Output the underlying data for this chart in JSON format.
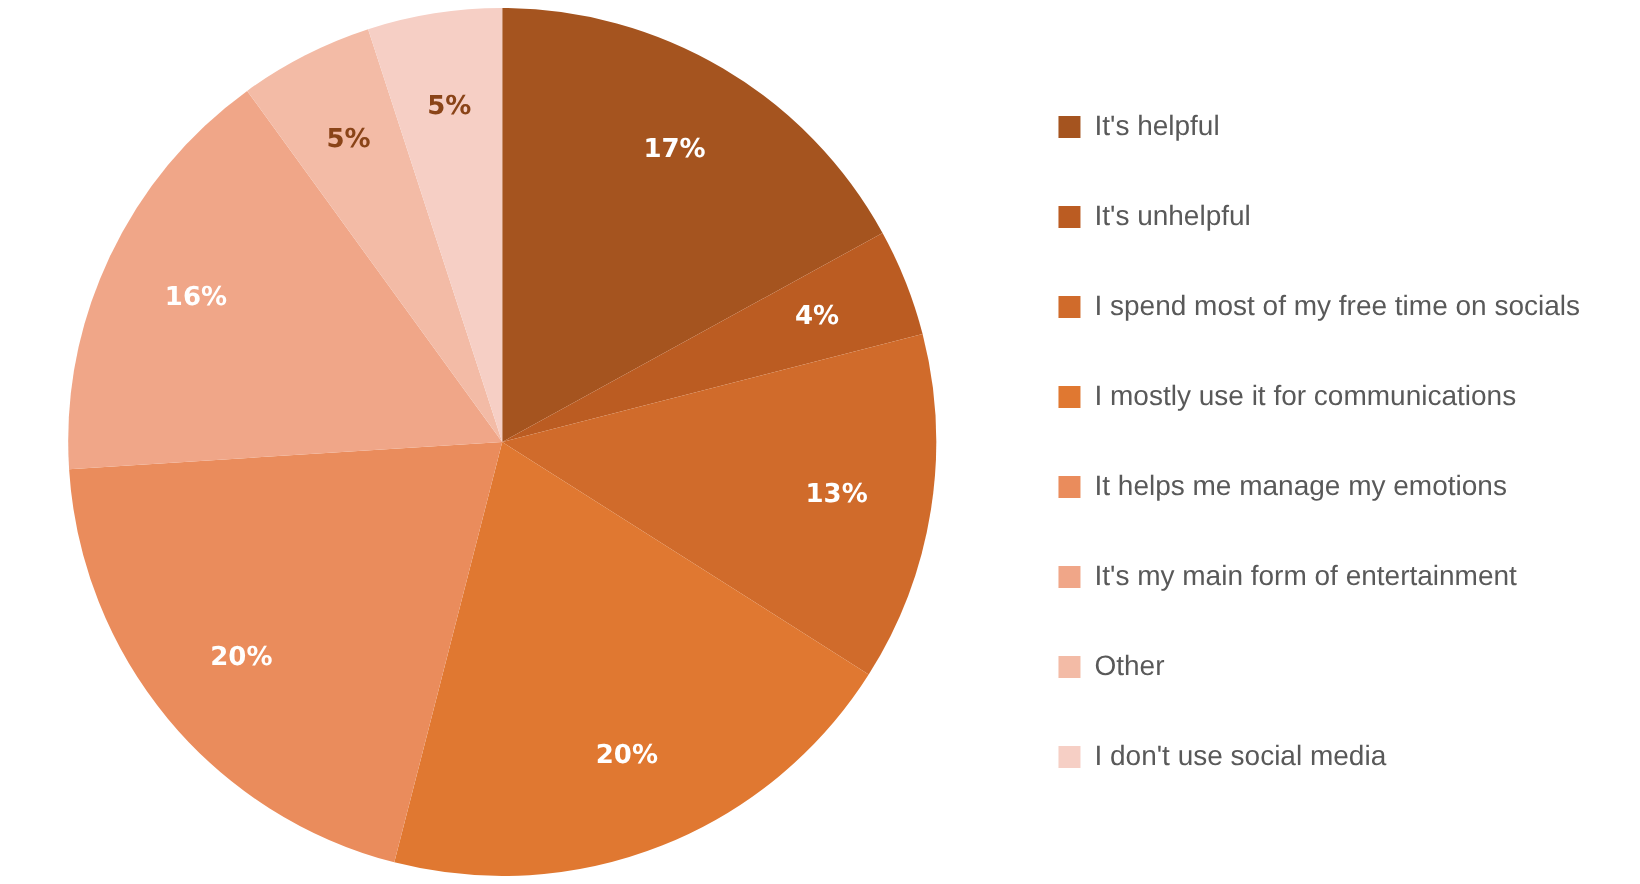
{
  "chart_data": {
    "type": "pie",
    "categories": [
      "It's helpful",
      "It's unhelpful",
      "I spend most of my free time on socials",
      "I mostly use it for communications",
      "It helps me manage my emotions",
      "It's my main form of entertainment",
      "Other",
      "I don't use social media"
    ],
    "values": [
      17,
      4,
      13,
      20,
      20,
      16,
      5,
      5
    ],
    "colors": [
      "#a5541f",
      "#bb5c22",
      "#d06b2b",
      "#e07831",
      "#ea8c5c",
      "#f0a688",
      "#f3bba6",
      "#f6cfc5"
    ],
    "value_labels": [
      "17%",
      "4%",
      "13%",
      "20%",
      "20%",
      "16%",
      "5%",
      "5%"
    ],
    "legend": "right"
  }
}
